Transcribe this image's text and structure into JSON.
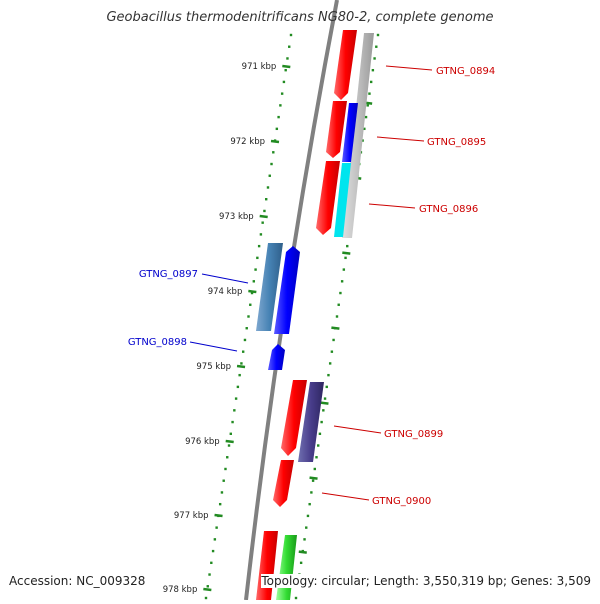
{
  "title": "Geobacillus thermodenitrificans NG80-2, complete genome",
  "footer": {
    "accession": "Accession: NC_009328",
    "topology": "Topology: circular; Length: 3,550,319 bp; Genes: 3,509"
  },
  "colors": {
    "forward_cds": "#ff0000",
    "reverse_cds": "#0000ff",
    "gene_label_forward": "#cc0000",
    "gene_label_reverse": "#0000cc",
    "tick_dots": "#228b22",
    "backbone": "#808080"
  },
  "ticks": [
    {
      "label": "971 kbp",
      "kbp": 971
    },
    {
      "label": "972 kbp",
      "kbp": 972
    },
    {
      "label": "973 kbp",
      "kbp": 973
    },
    {
      "label": "974 kbp",
      "kbp": 974
    },
    {
      "label": "975 kbp",
      "kbp": 975
    },
    {
      "label": "976 kbp",
      "kbp": 976
    },
    {
      "label": "977 kbp",
      "kbp": 977
    },
    {
      "label": "978 kbp",
      "kbp": 978
    }
  ],
  "genes": [
    {
      "label": "GTNG_0894",
      "strand": "forward"
    },
    {
      "label": "GTNG_0895",
      "strand": "forward"
    },
    {
      "label": "GTNG_0896",
      "strand": "forward"
    },
    {
      "label": "GTNG_0897",
      "strand": "reverse"
    },
    {
      "label": "GTNG_0898",
      "strand": "reverse"
    },
    {
      "label": "GTNG_0899",
      "strand": "forward"
    },
    {
      "label": "GTNG_0900",
      "strand": "forward"
    }
  ]
}
